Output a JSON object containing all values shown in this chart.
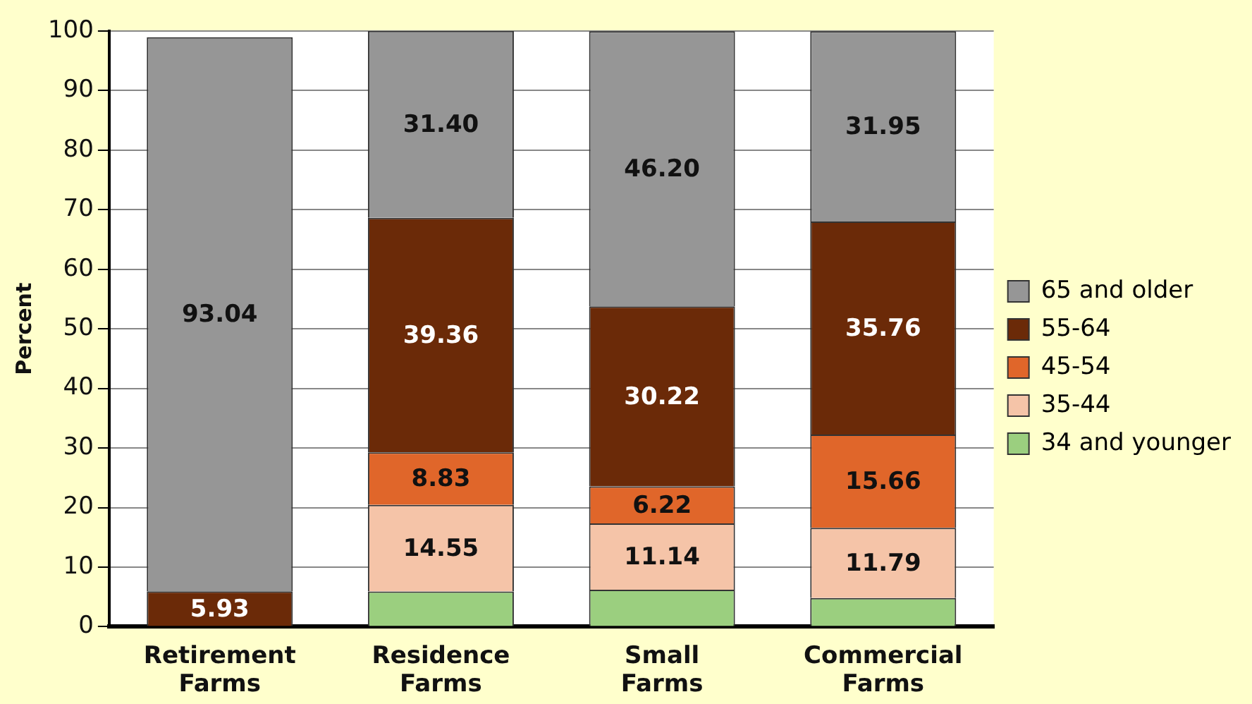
{
  "chart_data": {
    "type": "bar",
    "stacked": true,
    "ylabel": "Percent",
    "categories": [
      "Retirement Farms",
      "Residence Farms",
      "Small Farms",
      "Commercial Farms"
    ],
    "series": [
      {
        "name": "34 and younger",
        "color": "#9bcf7f",
        "values": [
          null,
          5.9,
          6.2,
          4.8
        ],
        "value_labels": [
          null,
          null,
          null,
          null
        ]
      },
      {
        "name": "35-44",
        "color": "#f5c4a8",
        "values": [
          null,
          14.55,
          11.14,
          11.79
        ],
        "value_labels": [
          null,
          "14.55",
          "11.14",
          "11.79"
        ]
      },
      {
        "name": "45-54",
        "color": "#e0662a",
        "values": [
          null,
          8.83,
          6.22,
          15.66
        ],
        "value_labels": [
          null,
          "8.83",
          "6.22",
          "15.66"
        ]
      },
      {
        "name": "55-64",
        "color": "#6b2a08",
        "values": [
          5.93,
          39.36,
          30.22,
          35.76
        ],
        "value_labels": [
          "5.93",
          "39.36",
          "30.22",
          "35.76"
        ]
      },
      {
        "name": "65 and older",
        "color": "#969696",
        "values": [
          93.04,
          31.4,
          46.2,
          31.95
        ],
        "value_labels": [
          "93.04",
          "31.40",
          "46.20",
          "31.95"
        ]
      }
    ],
    "ylim": [
      0,
      100
    ],
    "yticks": [
      0,
      10,
      20,
      30,
      40,
      50,
      60,
      70,
      80,
      90,
      100
    ],
    "grid": "y",
    "legend": "right"
  }
}
